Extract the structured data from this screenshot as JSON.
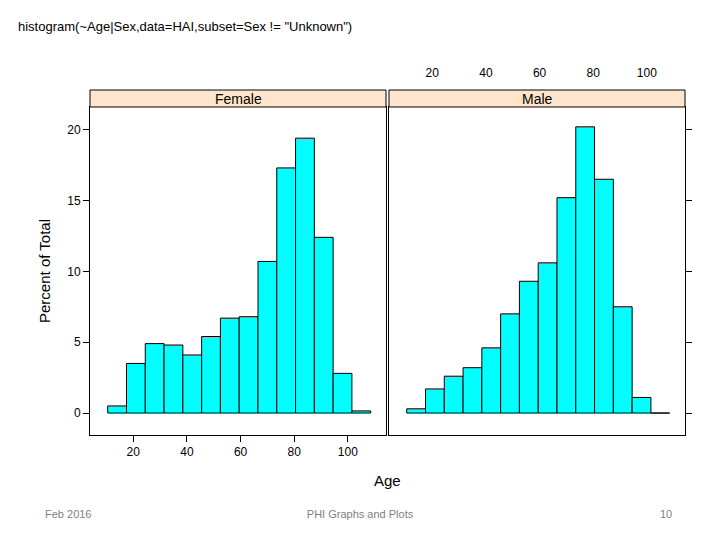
{
  "header": {
    "code": "histogram(~Age|Sex,data=HAI,subset=Sex != \"Unknown\")"
  },
  "footer": {
    "date": "Feb 2016",
    "title": "PHI Graphs and Plots",
    "page": "10"
  },
  "chart_data": [
    {
      "type": "histogram",
      "title": "Female",
      "x_label": "Age",
      "y_label": "Percent of Total",
      "bins": [
        10.5,
        17.5,
        24.5,
        31.5,
        38.5,
        45.5,
        52.5,
        59.5,
        66.5,
        73.5,
        80.5,
        87.5,
        94.5,
        101.5,
        108.5
      ],
      "values": [
        0.5,
        3.5,
        4.9,
        4.8,
        4.1,
        5.4,
        6.7,
        6.8,
        10.7,
        17.3,
        19.4,
        12.4,
        2.8,
        0.15
      ],
      "color": "#00ffff",
      "xlim": [
        3.9,
        114.2
      ],
      "xticks": [
        20,
        40,
        60,
        80,
        100
      ],
      "ylim": [
        -1.55,
        21.6
      ],
      "yticks": [
        0,
        5,
        10,
        15,
        20
      ],
      "grid": false
    },
    {
      "type": "histogram",
      "title": "Male",
      "bins": [
        10.5,
        17.5,
        24.5,
        31.5,
        38.5,
        45.5,
        52.5,
        59.5,
        66.5,
        73.5,
        80.5,
        87.5,
        94.5,
        101.5,
        108.5
      ],
      "values": [
        0.3,
        1.7,
        2.6,
        3.2,
        4.6,
        7.0,
        9.3,
        10.6,
        15.2,
        20.2,
        16.5,
        7.5,
        1.1,
        0
      ],
      "color": "#00ffff",
      "xlim": [
        3.9,
        114.2
      ],
      "xticks": [
        20,
        40,
        60,
        80,
        100
      ],
      "ylim": [
        -1.55,
        21.6
      ],
      "yticks": [
        0,
        5,
        10,
        15,
        20
      ],
      "grid": false
    }
  ]
}
